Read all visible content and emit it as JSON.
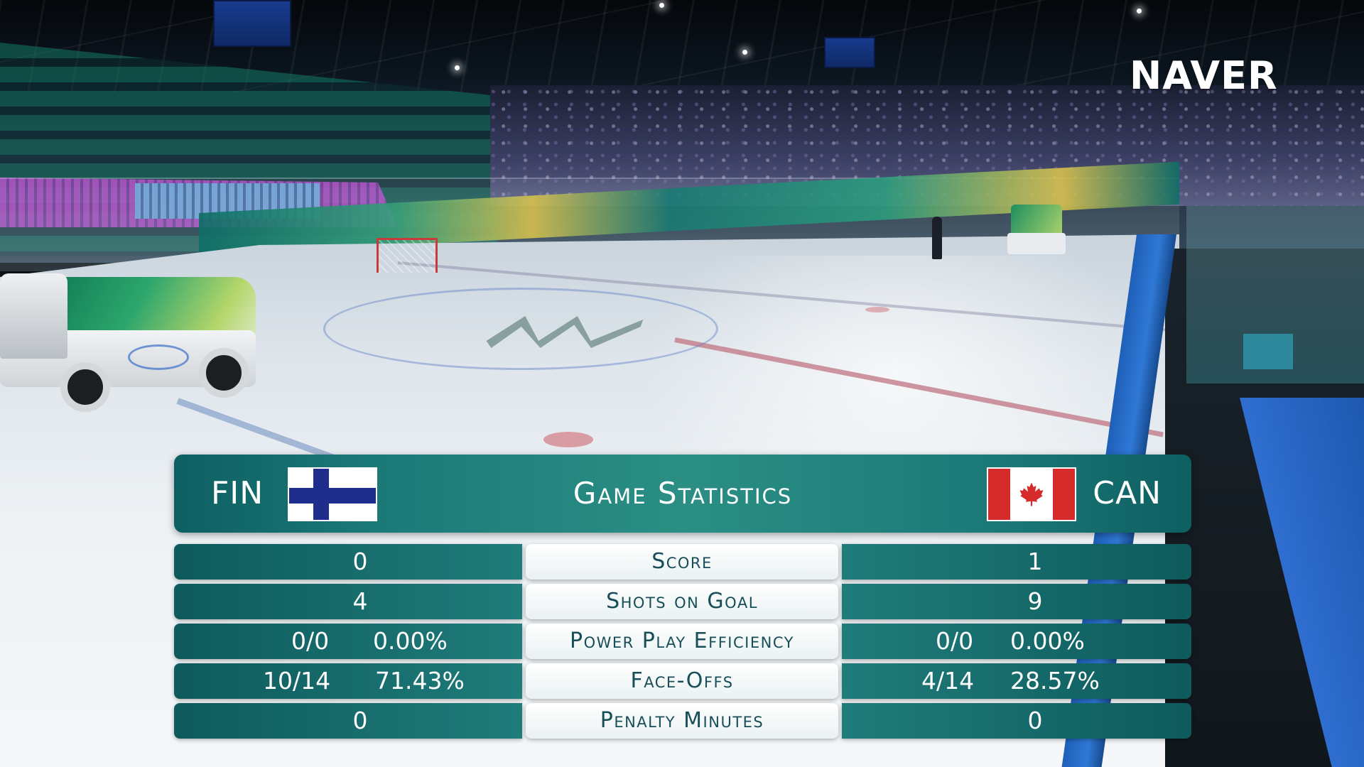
{
  "broadcaster": {
    "logo_text": "NAVER"
  },
  "header": {
    "title": "Game Statistics",
    "home_team": {
      "code": "FIN",
      "flag": "finland-flag-icon"
    },
    "away_team": {
      "code": "CAN",
      "flag": "canada-flag-icon"
    }
  },
  "stats": [
    {
      "label": "Score",
      "home_value": "0",
      "away_value": "1"
    },
    {
      "label": "Shots on Goal",
      "home_value": "4",
      "away_value": "9"
    },
    {
      "label": "Power Play Efficiency",
      "home_value": "0/0",
      "home_pct": "0.00%",
      "away_value": "0/0",
      "away_pct": "0.00%"
    },
    {
      "label": "Face-Offs",
      "home_value": "10/14",
      "home_pct": "71.43%",
      "away_value": "4/14",
      "away_pct": "28.57%"
    },
    {
      "label": "Penalty Minutes",
      "home_value": "0",
      "away_value": "0"
    }
  ],
  "colors": {
    "panel_teal": "#1b7a78",
    "label_text": "#174e57",
    "finland_blue": "#1f2e8c",
    "canada_red": "#d52b2b"
  }
}
